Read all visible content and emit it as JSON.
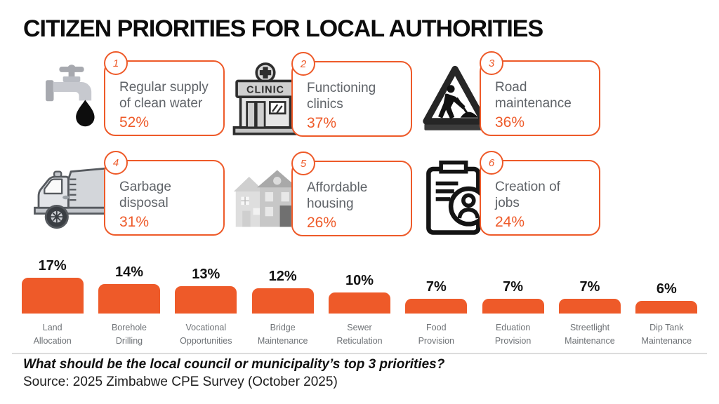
{
  "title": "CITIZEN PRIORITIES FOR LOCAL AUTHORITIES",
  "colors": {
    "accent": "#EE5A29",
    "card_text_gray": "#5f6368",
    "bar_label_gray": "#6e7276",
    "ink": "#121212",
    "divider": "#dcdcdc"
  },
  "priorities": [
    {
      "rank": "1",
      "lines": [
        "Regular supply",
        "of clean water"
      ],
      "value": "52%",
      "icon": "faucet-icon"
    },
    {
      "rank": "2",
      "lines": [
        "Functioning",
        "clinics"
      ],
      "value": "37%",
      "icon": "clinic-icon"
    },
    {
      "rank": "3",
      "lines": [
        "Road",
        "maintenance"
      ],
      "value": "36%",
      "icon": "roadworks-sign-icon"
    },
    {
      "rank": "4",
      "lines": [
        "Garbage",
        "disposal"
      ],
      "value": "31%",
      "icon": "garbage-truck-icon"
    },
    {
      "rank": "5",
      "lines": [
        "Affordable",
        "housing"
      ],
      "value": "26%",
      "icon": "houses-icon"
    },
    {
      "rank": "6",
      "lines": [
        "Creation of",
        "jobs"
      ],
      "value": "24%",
      "icon": "clipboard-person-icon"
    }
  ],
  "clinic_sign_text": "CLINIC",
  "chart_data": {
    "type": "bar",
    "categories": [
      [
        "Land",
        "Allocation"
      ],
      [
        "Borehole",
        "Drilling"
      ],
      [
        "Vocational",
        "Opportunities"
      ],
      [
        "Bridge",
        "Maintenance"
      ],
      [
        "Sewer",
        "Reticulation"
      ],
      [
        "Food",
        "Provision"
      ],
      [
        "Eduation",
        "Provision"
      ],
      [
        "Streetlight",
        "Maintenance"
      ],
      [
        "Dip Tank",
        "Maintenance"
      ]
    ],
    "values": [
      17,
      14,
      13,
      12,
      10,
      7,
      7,
      7,
      6
    ],
    "value_labels": [
      "17%",
      "14%",
      "13%",
      "12%",
      "10%",
      "7%",
      "7%",
      "7%",
      "6%"
    ],
    "bar_color": "#EE5A29",
    "ylim": [
      0,
      18
    ],
    "grid": false,
    "legend": "none",
    "title": "",
    "xlabel": "",
    "ylabel": ""
  },
  "footer": {
    "question": "What should be the local council or municipality’s top 3 priorities?",
    "source": "Source: 2025 Zimbabwe CPE Survey (October 2025)"
  }
}
